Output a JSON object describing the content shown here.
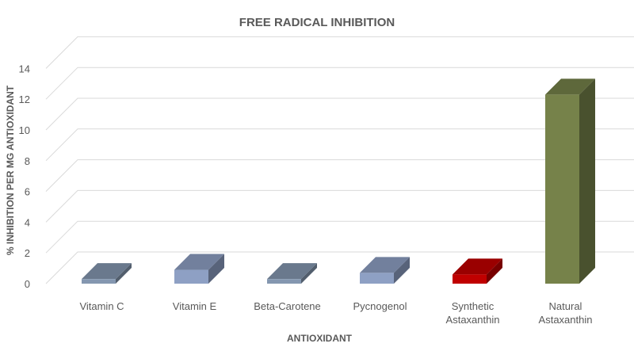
{
  "chart_data": {
    "type": "bar",
    "title": "FREE RADICAL INHIBITION",
    "xlabel": "ANTIOXIDANT",
    "ylabel": "% INHIBITION PER MG ANTIOXIDANT",
    "ylim": [
      0,
      14
    ],
    "yticks": [
      "0",
      "2",
      "4",
      "6",
      "8",
      "10",
      "12",
      "14"
    ],
    "grid": true,
    "style": "3d-column",
    "categories": [
      [
        "Vitamin C"
      ],
      [
        "Vitamin E"
      ],
      [
        "Beta-Carotene"
      ],
      [
        "Pycnogenol"
      ],
      [
        "Synthetic",
        "Astaxanthin"
      ],
      [
        "Natural",
        "Astaxanthin"
      ]
    ],
    "values": [
      0.3,
      0.9,
      0.3,
      0.7,
      0.6,
      12.3
    ],
    "colors": {
      "Vitamin C": "#8497b0",
      "Vitamin E": "#8ea0c4",
      "Beta-Carotene": "#8497b0",
      "Pycnogenol": "#8ea0c4",
      "Synthetic Astaxanthin": "#c00000",
      "Natural Astaxanthin": "#76824a"
    }
  }
}
